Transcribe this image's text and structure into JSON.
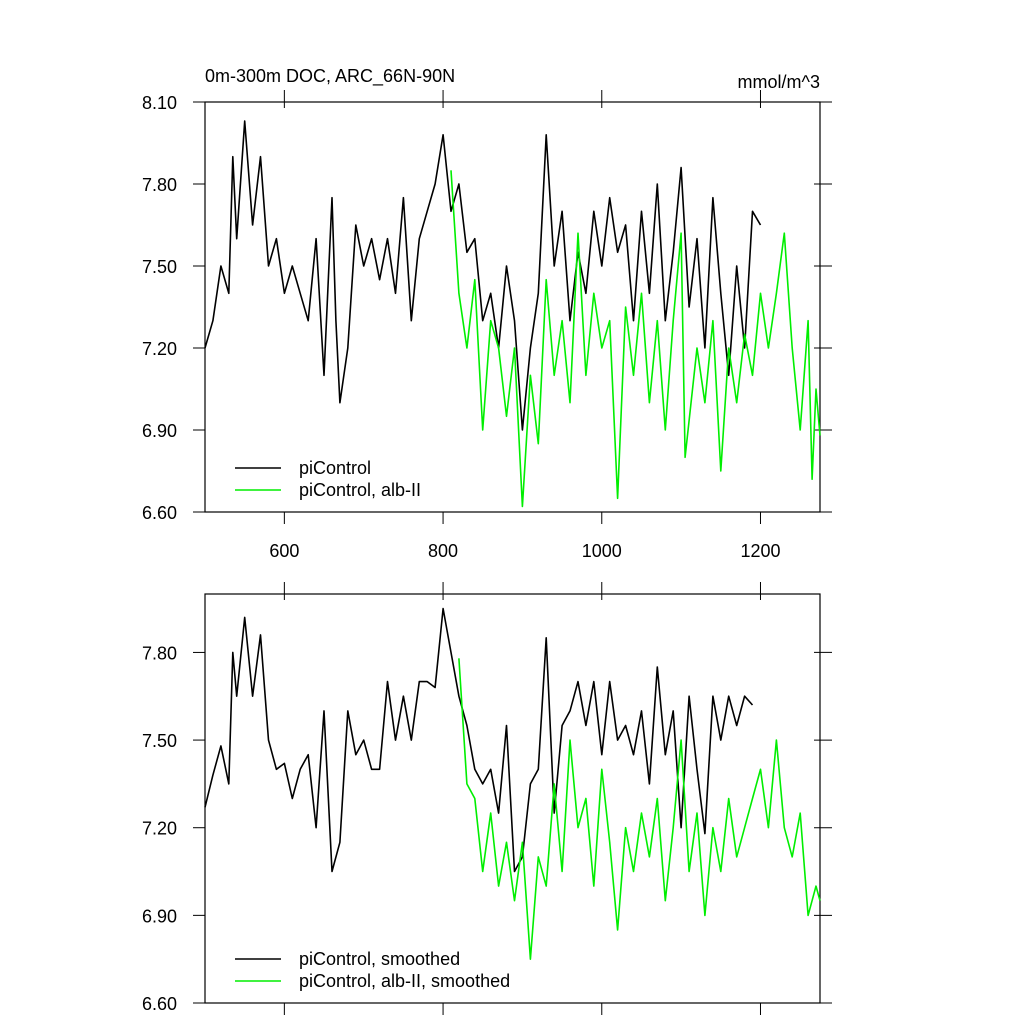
{
  "chart_data": [
    {
      "type": "line",
      "title": "0m-300m DOC, ARC_66N-90N",
      "units": "mmol/m^3",
      "xlim": [
        500,
        1275
      ],
      "ylim": [
        6.6,
        8.1
      ],
      "xticks": [
        600,
        800,
        1000,
        1200
      ],
      "xtick_labels": true,
      "yticks": [
        {
          "value": 6.6,
          "label": "6.60"
        },
        {
          "value": 6.9,
          "label": "6.90"
        },
        {
          "value": 7.2,
          "label": "7.20"
        },
        {
          "value": 7.5,
          "label": "7.50"
        },
        {
          "value": 7.8,
          "label": "7.80"
        },
        {
          "value": 8.1,
          "label": "8.10"
        }
      ],
      "legend": "lower left",
      "series": [
        {
          "name": "piControl",
          "color": "#000000",
          "x": [
            500,
            510,
            520,
            530,
            535,
            540,
            550,
            560,
            570,
            580,
            590,
            600,
            610,
            620,
            630,
            640,
            650,
            660,
            665,
            670,
            680,
            690,
            700,
            710,
            720,
            730,
            740,
            750,
            760,
            770,
            780,
            790,
            800,
            810,
            820,
            830,
            840,
            850,
            860,
            870,
            880,
            890,
            900,
            910,
            920,
            930,
            940,
            950,
            960,
            970,
            980,
            990,
            1000,
            1010,
            1020,
            1030,
            1040,
            1050,
            1060,
            1070,
            1080,
            1090,
            1100,
            1110,
            1120,
            1130,
            1140,
            1150,
            1160,
            1170,
            1180,
            1190,
            1200
          ],
          "values": [
            7.2,
            7.3,
            7.5,
            7.4,
            7.9,
            7.6,
            8.03,
            7.65,
            7.9,
            7.5,
            7.6,
            7.4,
            7.5,
            7.4,
            7.3,
            7.6,
            7.1,
            7.75,
            7.3,
            7.0,
            7.2,
            7.65,
            7.5,
            7.6,
            7.45,
            7.6,
            7.4,
            7.75,
            7.3,
            7.6,
            7.7,
            7.8,
            7.98,
            7.7,
            7.8,
            7.55,
            7.6,
            7.3,
            7.4,
            7.2,
            7.5,
            7.3,
            6.9,
            7.2,
            7.4,
            7.98,
            7.5,
            7.7,
            7.3,
            7.55,
            7.4,
            7.7,
            7.5,
            7.75,
            7.55,
            7.65,
            7.3,
            7.7,
            7.4,
            7.8,
            7.3,
            7.55,
            7.86,
            7.35,
            7.6,
            7.2,
            7.75,
            7.4,
            7.1,
            7.5,
            7.2,
            7.7,
            7.65
          ]
        },
        {
          "name": "piControl, alb-II",
          "color": "#00ee00",
          "x": [
            810,
            820,
            830,
            840,
            850,
            860,
            870,
            880,
            890,
            900,
            910,
            920,
            930,
            940,
            950,
            960,
            970,
            980,
            990,
            1000,
            1010,
            1020,
            1030,
            1040,
            1050,
            1060,
            1070,
            1080,
            1090,
            1100,
            1105,
            1120,
            1130,
            1140,
            1150,
            1160,
            1170,
            1180,
            1190,
            1200,
            1210,
            1220,
            1230,
            1240,
            1250,
            1260,
            1265,
            1270,
            1275
          ],
          "values": [
            7.85,
            7.4,
            7.2,
            7.45,
            6.9,
            7.3,
            7.2,
            6.95,
            7.2,
            6.62,
            7.1,
            6.85,
            7.45,
            7.1,
            7.3,
            7.0,
            7.62,
            7.1,
            7.4,
            7.2,
            7.3,
            6.65,
            7.35,
            7.1,
            7.4,
            7.0,
            7.3,
            6.9,
            7.3,
            7.62,
            6.8,
            7.2,
            7.0,
            7.3,
            6.75,
            7.2,
            7.0,
            7.25,
            7.1,
            7.4,
            7.2,
            7.4,
            7.62,
            7.2,
            6.9,
            7.3,
            6.72,
            7.05,
            6.88
          ]
        }
      ]
    },
    {
      "type": "line",
      "xlim": [
        500,
        1275
      ],
      "ylim": [
        6.6,
        8.0
      ],
      "xticks": [
        600,
        800,
        1000,
        1200
      ],
      "xtick_labels": false,
      "yticks": [
        {
          "value": 6.6,
          "label": "6.60"
        },
        {
          "value": 6.9,
          "label": "6.90"
        },
        {
          "value": 7.2,
          "label": "7.20"
        },
        {
          "value": 7.5,
          "label": "7.50"
        },
        {
          "value": 7.8,
          "label": "7.80"
        }
      ],
      "legend": "lower left",
      "series": [
        {
          "name": "piControl, smoothed",
          "color": "#000000",
          "x": [
            500,
            510,
            520,
            530,
            535,
            540,
            550,
            560,
            570,
            580,
            590,
            600,
            610,
            620,
            630,
            640,
            650,
            660,
            670,
            680,
            690,
            700,
            710,
            720,
            730,
            740,
            750,
            760,
            770,
            780,
            790,
            800,
            810,
            820,
            830,
            840,
            850,
            860,
            870,
            880,
            890,
            900,
            910,
            920,
            930,
            940,
            950,
            960,
            970,
            980,
            990,
            1000,
            1010,
            1020,
            1030,
            1040,
            1050,
            1060,
            1070,
            1080,
            1090,
            1100,
            1110,
            1120,
            1130,
            1140,
            1150,
            1160,
            1170,
            1180,
            1190
          ],
          "values": [
            7.27,
            7.38,
            7.48,
            7.35,
            7.8,
            7.65,
            7.92,
            7.65,
            7.86,
            7.5,
            7.4,
            7.42,
            7.3,
            7.4,
            7.45,
            7.2,
            7.6,
            7.05,
            7.15,
            7.6,
            7.45,
            7.5,
            7.4,
            7.4,
            7.7,
            7.5,
            7.65,
            7.5,
            7.7,
            7.7,
            7.68,
            7.95,
            7.8,
            7.65,
            7.55,
            7.4,
            7.35,
            7.4,
            7.25,
            7.55,
            7.05,
            7.1,
            7.35,
            7.4,
            7.85,
            7.25,
            7.55,
            7.6,
            7.7,
            7.55,
            7.7,
            7.45,
            7.7,
            7.5,
            7.55,
            7.45,
            7.6,
            7.35,
            7.75,
            7.45,
            7.6,
            7.2,
            7.65,
            7.4,
            7.18,
            7.65,
            7.5,
            7.65,
            7.55,
            7.65,
            7.62
          ]
        },
        {
          "name": "piControl, alb-II, smoothed",
          "color": "#00ee00",
          "x": [
            820,
            830,
            840,
            850,
            860,
            870,
            880,
            890,
            900,
            910,
            920,
            930,
            940,
            950,
            960,
            970,
            980,
            990,
            1000,
            1010,
            1020,
            1030,
            1040,
            1050,
            1060,
            1070,
            1080,
            1090,
            1100,
            1110,
            1120,
            1130,
            1140,
            1150,
            1160,
            1170,
            1180,
            1190,
            1200,
            1210,
            1220,
            1230,
            1240,
            1250,
            1260,
            1270,
            1275
          ],
          "values": [
            7.78,
            7.35,
            7.3,
            7.05,
            7.25,
            7.0,
            7.15,
            6.95,
            7.15,
            6.75,
            7.1,
            7.0,
            7.35,
            7.05,
            7.5,
            7.2,
            7.3,
            7.0,
            7.4,
            7.15,
            6.85,
            7.2,
            7.05,
            7.25,
            7.1,
            7.3,
            6.95,
            7.2,
            7.5,
            7.05,
            7.25,
            6.9,
            7.2,
            7.05,
            7.3,
            7.1,
            7.2,
            7.3,
            7.4,
            7.2,
            7.5,
            7.2,
            7.1,
            7.25,
            6.9,
            7.0,
            6.95
          ]
        }
      ]
    }
  ]
}
